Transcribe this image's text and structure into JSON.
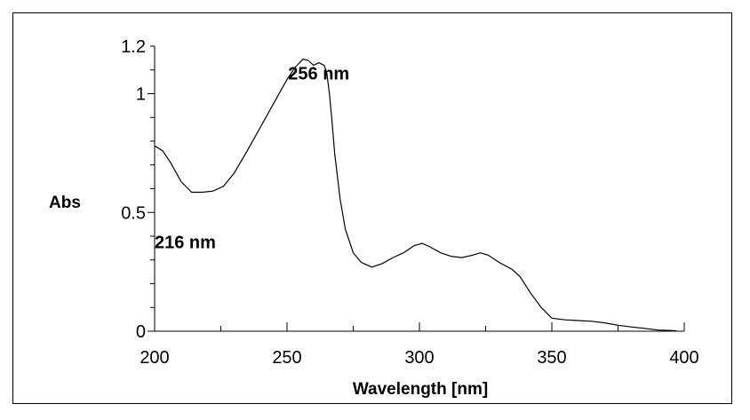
{
  "chart_data": {
    "type": "line",
    "title": "",
    "xlabel": "Wavelength [nm]",
    "ylabel": "Abs",
    "xlim": [
      200,
      400
    ],
    "ylim": [
      0,
      1.2
    ],
    "x_ticks": [
      200,
      250,
      300,
      350,
      400
    ],
    "x_tick_labels": [
      "200",
      "250",
      "300",
      "350",
      "400"
    ],
    "y_ticks": [
      0,
      0.5,
      1,
      1.2
    ],
    "y_tick_labels": [
      "0",
      "0.5",
      "1",
      "1.2"
    ],
    "grid": false,
    "series": [
      {
        "color": "#000000",
        "x": [
          200,
          203,
          206,
          210,
          214,
          218,
          222,
          226,
          230,
          235,
          240,
          245,
          250,
          253,
          256,
          258,
          260,
          262,
          264,
          265,
          266,
          267,
          268,
          270,
          272,
          275,
          278,
          282,
          286,
          290,
          294,
          298,
          301,
          304,
          308,
          312,
          316,
          320,
          323,
          326,
          330,
          335,
          338,
          342,
          346,
          350,
          355,
          360,
          365,
          370,
          375,
          380,
          385,
          390,
          395,
          397
        ],
        "y": [
          0.78,
          0.76,
          0.71,
          0.63,
          0.585,
          0.585,
          0.59,
          0.61,
          0.665,
          0.76,
          0.86,
          0.96,
          1.06,
          1.11,
          1.145,
          1.14,
          1.12,
          1.13,
          1.12,
          1.09,
          1.0,
          0.88,
          0.75,
          0.56,
          0.43,
          0.33,
          0.29,
          0.27,
          0.285,
          0.31,
          0.33,
          0.36,
          0.37,
          0.355,
          0.33,
          0.315,
          0.31,
          0.32,
          0.33,
          0.32,
          0.29,
          0.26,
          0.23,
          0.16,
          0.1,
          0.055,
          0.048,
          0.045,
          0.042,
          0.035,
          0.025,
          0.018,
          0.012,
          0.005,
          0.003,
          0.002
        ]
      }
    ],
    "annotations": [
      {
        "text": "256 nm",
        "x": 262,
        "y": 1.06
      },
      {
        "text": "216 nm",
        "x": 200,
        "y": 0.35
      }
    ]
  }
}
